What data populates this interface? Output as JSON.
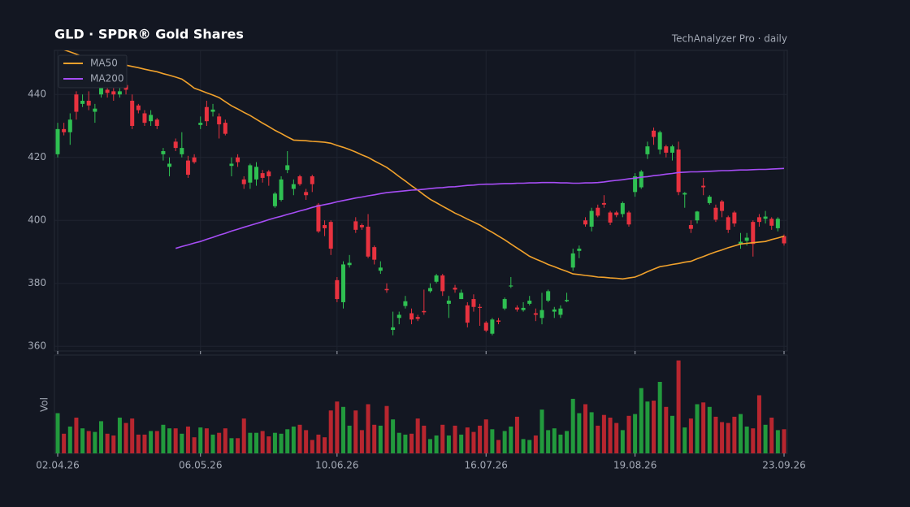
{
  "chart_data": {
    "type": "candlestick",
    "title": "GLD  ·  SPDR® Gold Shares",
    "subtitle": "TechAnalyzer Pro · daily",
    "categories": [
      "02.04.26",
      null,
      null,
      null,
      null,
      null,
      null,
      null,
      null,
      null,
      null,
      null,
      null,
      null,
      null,
      null,
      null,
      null,
      null,
      null,
      null,
      null,
      null,
      "06.05.26",
      null,
      null,
      null,
      null,
      null,
      null,
      null,
      null,
      null,
      null,
      null,
      null,
      null,
      null,
      null,
      null,
      null,
      null,
      null,
      null,
      null,
      "10.06.26",
      null,
      null,
      null,
      null,
      null,
      null,
      null,
      null,
      null,
      null,
      null,
      null,
      null,
      null,
      null,
      null,
      null,
      null,
      null,
      null,
      null,
      null,
      null,
      "16.07.26",
      null,
      null,
      null,
      null,
      null,
      null,
      null,
      null,
      null,
      null,
      null,
      null,
      null,
      null,
      null,
      null,
      null,
      null,
      null,
      null,
      null,
      null,
      null,
      "19.08.26",
      null,
      null,
      null,
      null,
      null,
      null,
      null,
      null,
      null,
      null,
      null,
      null,
      null,
      null,
      null,
      null,
      null,
      null,
      null,
      null,
      null,
      null,
      null,
      "23.09.26"
    ],
    "open": [
      421,
      429,
      428,
      440,
      437,
      438,
      434.5,
      440,
      441.5,
      441,
      440,
      443,
      438,
      436.5,
      434,
      431.5,
      432,
      421,
      417,
      425,
      421,
      419,
      420,
      430.3,
      436,
      434.5,
      433,
      431,
      417.3,
      420,
      413,
      412,
      413,
      415,
      415.5,
      404.5,
      406.5,
      416,
      410,
      414,
      409,
      414,
      405,
      398.5,
      399.5,
      381,
      374,
      385.8,
      399.7,
      398.5,
      398,
      391.5,
      384,
      378.2,
      365.2,
      369,
      372.8,
      370.5,
      369.3,
      371.2,
      377.5,
      380.5,
      382.5,
      373.5,
      378.6,
      375,
      373,
      375,
      372.5,
      367.5,
      364,
      368.2,
      372,
      379,
      372.3,
      371.5,
      373.5,
      370.5,
      369,
      374.5,
      371,
      370,
      374.3,
      385,
      390.3,
      400,
      398,
      404,
      405.5,
      402.5,
      402.5,
      402,
      402.5,
      409,
      410.5,
      421,
      428.5,
      422.5,
      423.5,
      421.5,
      422.5,
      408.2,
      398.5,
      400,
      411,
      405.5,
      404,
      406,
      401,
      402.5,
      392.3,
      393.5,
      399.5,
      401,
      400.5,
      400.5,
      397.5,
      395
    ],
    "high": [
      431,
      431,
      434,
      441,
      440,
      441,
      437,
      446,
      443,
      443,
      443,
      445,
      440,
      437,
      435,
      435,
      432.5,
      423,
      420,
      426,
      428,
      420.5,
      421,
      433,
      438,
      437,
      434,
      432,
      420,
      421,
      414,
      418,
      418.5,
      416,
      416,
      409,
      414,
      422,
      413,
      414.5,
      410,
      414.5,
      405.5,
      400,
      400,
      382,
      387,
      389,
      401,
      399,
      402,
      392,
      387,
      380,
      371,
      371,
      376,
      372,
      370,
      378,
      380,
      383,
      383,
      376,
      379.5,
      378,
      374,
      376.5,
      373.5,
      368,
      369,
      369,
      375.5,
      382,
      373,
      374,
      376,
      372,
      377,
      378,
      372.5,
      373,
      377,
      391,
      392,
      401,
      404,
      405,
      408,
      403,
      403,
      406,
      403,
      415,
      416,
      425,
      429.5,
      428.5,
      424,
      424,
      425,
      409,
      400,
      403,
      413.5,
      408,
      405,
      406.5,
      401.5,
      403,
      396,
      396,
      400,
      402,
      403,
      401,
      401,
      395.5
    ],
    "low": [
      420,
      427,
      424,
      432,
      436,
      435,
      431,
      439,
      439,
      438,
      439,
      440,
      429,
      434,
      430,
      430,
      429,
      419,
      414,
      422,
      420,
      413.5,
      418,
      429,
      430,
      433,
      426,
      427,
      414,
      417,
      410,
      410,
      411,
      412,
      411,
      404,
      406,
      415,
      408,
      411,
      406.5,
      409,
      396,
      395,
      389,
      374,
      372,
      385,
      396,
      397,
      388,
      386,
      383,
      377,
      363.5,
      367,
      372,
      367,
      368,
      370,
      377,
      380,
      376,
      369,
      377,
      375,
      366,
      371,
      366.5,
      364.5,
      363.5,
      367,
      371.5,
      378.5,
      371,
      371,
      373,
      368,
      367,
      374,
      369,
      369,
      374,
      384,
      388,
      398,
      396.5,
      401,
      404,
      398.5,
      401,
      401,
      398,
      407.5,
      410,
      419.5,
      424,
      421,
      420,
      419,
      408,
      404,
      396,
      399,
      408,
      405,
      399.5,
      401,
      396,
      398,
      391,
      392,
      388.5,
      398,
      399,
      397,
      396.5,
      392
    ],
    "close": [
      429,
      428,
      432,
      434.5,
      438,
      436.5,
      435.5,
      444,
      440.5,
      440,
      441,
      441.5,
      430,
      435,
      431,
      433.5,
      430,
      422,
      418,
      423,
      423,
      414.5,
      418.5,
      431,
      431.5,
      435.2,
      430.5,
      427.5,
      418,
      418.5,
      411.5,
      417.5,
      417,
      413.5,
      414,
      408.5,
      413,
      417.5,
      411.5,
      411.5,
      408,
      411.5,
      396.5,
      397.5,
      391,
      375,
      386,
      386.5,
      397,
      397.8,
      388.5,
      387.5,
      385,
      377.8,
      366,
      370,
      374.3,
      368.5,
      368.7,
      370.8,
      378.5,
      382.5,
      377.5,
      374.5,
      378,
      377,
      367.5,
      372.5,
      372.2,
      365,
      368.5,
      367.8,
      375,
      379.3,
      371.7,
      372.2,
      374.5,
      370,
      371.5,
      377.5,
      371.7,
      372,
      374.7,
      389.5,
      391,
      398.7,
      403,
      401.5,
      405,
      399.3,
      401.7,
      405.5,
      398.7,
      414,
      415.5,
      423.5,
      426.5,
      428,
      421.5,
      423.5,
      409,
      408.7,
      397.3,
      402.8,
      410.5,
      407.5,
      400.2,
      403,
      397,
      399,
      393.2,
      394.5,
      392.5,
      399.5,
      401.2,
      398.3,
      400.5,
      392.7
    ],
    "up_color": "#2fc052",
    "down_color": "#e8323f",
    "volume_up_color": "#229a3d",
    "volume_down_color": "#b8262f",
    "volume": [
      45,
      22,
      30,
      40,
      28,
      25,
      24,
      36,
      22,
      20,
      40,
      34,
      39,
      21,
      21,
      25,
      25,
      32,
      28,
      28,
      22,
      30,
      18,
      29,
      28,
      21,
      23,
      28,
      17,
      17,
      39,
      23,
      23,
      25,
      19,
      23,
      22,
      27,
      30,
      32,
      26,
      15,
      21,
      18,
      48,
      58,
      52,
      31,
      48,
      26,
      55,
      32,
      31,
      53,
      38,
      23,
      21,
      22,
      39,
      31,
      16,
      20,
      32,
      20,
      31,
      21,
      29,
      24,
      31,
      38,
      27,
      15,
      25,
      30,
      41,
      16,
      15,
      20,
      49,
      26,
      28,
      21,
      25,
      61,
      45,
      55,
      46,
      31,
      43,
      40,
      34,
      26,
      42,
      44,
      73,
      58,
      59,
      80,
      52,
      42,
      104,
      29,
      39,
      55,
      57,
      52,
      41,
      35,
      34,
      41,
      44,
      30,
      28,
      65,
      32,
      40,
      26,
      27
    ],
    "volume_label": "Vol",
    "volume_ylim": [
      0,
      110
    ],
    "series": [
      {
        "name": "MA50",
        "color": "#f0a12c",
        "values": [
          455,
          454.2,
          453.5,
          452.8,
          452,
          451.6,
          451.2,
          450.8,
          450.5,
          450.1,
          449.7,
          449.3,
          448.9,
          448.5,
          448,
          447.6,
          447.2,
          446.6,
          446.1,
          445.5,
          444.9,
          443.5,
          442,
          441.3,
          440.5,
          439.8,
          439,
          437.7,
          436.4,
          435.4,
          434.3,
          433.3,
          432.1,
          430.9,
          429.8,
          428.6,
          427.6,
          426.5,
          425.5,
          425.4,
          425.3,
          425.1,
          425,
          424.8,
          424.5,
          423.8,
          423.2,
          422.5,
          421.7,
          420.8,
          420,
          418.9,
          417.9,
          416.8,
          415.4,
          413.9,
          412.5,
          411,
          409.6,
          408.1,
          406.7,
          405.6,
          404.5,
          403.4,
          402.3,
          401.4,
          400.4,
          399.5,
          398.5,
          397.3,
          396.2,
          395,
          393.8,
          392.5,
          391.2,
          389.9,
          388.6,
          387.7,
          386.9,
          386,
          385.3,
          384.5,
          383.8,
          383,
          382.8,
          382.5,
          382.3,
          382,
          381.9,
          381.7,
          381.6,
          381.4,
          381.7,
          382,
          382.8,
          383.7,
          384.5,
          385.3,
          385.6,
          386,
          386.3,
          386.7,
          387,
          387.8,
          388.5,
          389.3,
          390,
          390.6,
          391.3,
          391.9,
          392.5,
          392.7,
          392.9,
          393.1,
          393.3,
          393.9,
          394.4,
          395
        ]
      },
      {
        "name": "MA200",
        "color": "#a64df5",
        "values": [
          null,
          null,
          null,
          null,
          null,
          null,
          null,
          null,
          null,
          null,
          null,
          null,
          null,
          null,
          null,
          null,
          null,
          null,
          null,
          391.1,
          391.7,
          392.2,
          392.8,
          393.3,
          394,
          394.6,
          395.3,
          395.9,
          396.6,
          397.2,
          397.8,
          398.4,
          399,
          399.6,
          400.2,
          400.8,
          401.3,
          401.9,
          402.4,
          403,
          403.5,
          404.1,
          404.6,
          405,
          405.4,
          405.9,
          406.3,
          406.7,
          407.1,
          407.4,
          407.8,
          408.1,
          408.5,
          408.8,
          409,
          409.2,
          409.4,
          409.6,
          409.7,
          409.9,
          410.1,
          410.3,
          410.4,
          410.6,
          410.7,
          410.9,
          411.1,
          411.2,
          411.4,
          411.5,
          411.5,
          411.6,
          411.7,
          411.7,
          411.8,
          411.8,
          411.9,
          411.9,
          412,
          412,
          412,
          411.9,
          411.9,
          411.8,
          411.8,
          411.9,
          411.9,
          412,
          412.2,
          412.5,
          412.7,
          412.9,
          413.2,
          413.4,
          413.7,
          413.9,
          414.2,
          414.4,
          414.7,
          414.9,
          415.2,
          415.3,
          415.4,
          415.4,
          415.5,
          415.6,
          415.7,
          415.8,
          415.8,
          415.9,
          416,
          416,
          416.1,
          416.2,
          416.2,
          416.3,
          416.4,
          416.5
        ]
      }
    ],
    "ylim": [
      358.5,
      454
    ],
    "yticks": [
      360,
      380,
      400,
      420,
      440
    ],
    "grid": true,
    "legend": "upper left"
  }
}
